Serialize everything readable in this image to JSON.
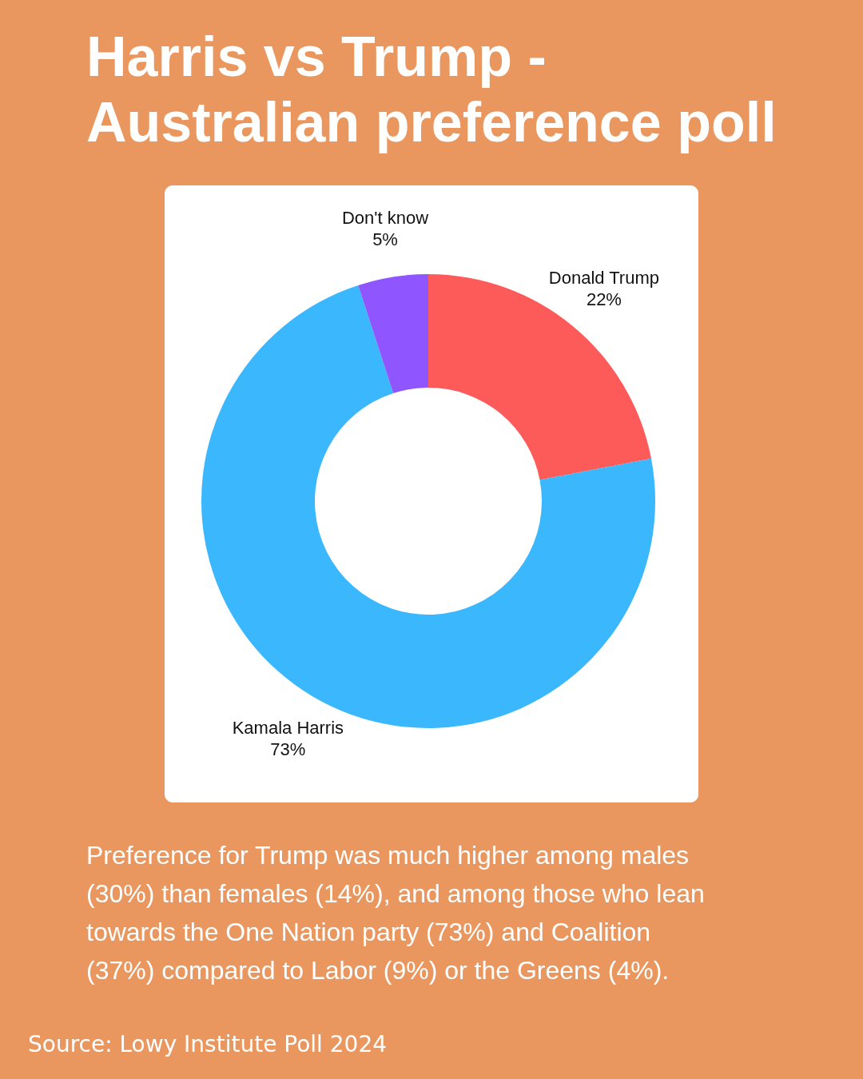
{
  "chart_data": {
    "type": "donut",
    "title": "Harris vs Trump - Australian preference poll",
    "categories": [
      "Donald Trump",
      "Kamala Harris",
      "Don't know"
    ],
    "values": [
      22,
      73,
      5
    ],
    "colors": [
      "#fd5a5a",
      "#3ab7fd",
      "#8f55fe"
    ],
    "value_labels": [
      "22%",
      "73%",
      "5%"
    ],
    "annotations": [
      "Preference for Trump was much higher among males (30%) than females (14%), and among those who lean towards the One Nation party (73%) and Coalition (37%) compared to Labor (9%) or the Greens (4%).",
      "Source: Lowy Institute Poll 2024"
    ]
  }
}
